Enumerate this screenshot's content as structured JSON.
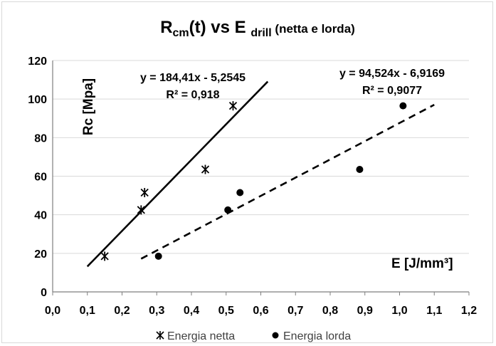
{
  "chart_data": {
    "type": "scatter",
    "title": {
      "main": "R",
      "main_sub": "cm",
      "mid": "(t) vs E ",
      "mid_sub": "drill",
      "tail": " (netta e lorda)"
    },
    "xlabel": "E [J/mm³]",
    "ylabel": "Rc [Mpa]",
    "xlim": [
      0,
      1.2
    ],
    "ylim": [
      0,
      120
    ],
    "xticks": [
      "0,0",
      "0,1",
      "0,2",
      "0,3",
      "0,4",
      "0,5",
      "0,6",
      "0,7",
      "0,8",
      "0,9",
      "1,0",
      "1,1",
      "1,2"
    ],
    "yticks": [
      "0",
      "20",
      "40",
      "60",
      "80",
      "100",
      "120"
    ],
    "grid": "horizontal",
    "legend_position": "bottom",
    "series": [
      {
        "name": "Energia netta",
        "marker": "asterisk",
        "color": "#000000",
        "points": [
          {
            "x": 0.15,
            "y": 18.5
          },
          {
            "x": 0.255,
            "y": 42.5
          },
          {
            "x": 0.265,
            "y": 51.5
          },
          {
            "x": 0.44,
            "y": 63.5
          },
          {
            "x": 0.52,
            "y": 96.5
          }
        ],
        "trendline": {
          "style": "solid",
          "slope": 184.41,
          "intercept": -5.2545,
          "x_range": [
            0.1,
            0.62
          ],
          "equation": "y = 184,41x - 5,2545",
          "r2": "R² = 0,918"
        }
      },
      {
        "name": "Energia lorda",
        "marker": "circle",
        "color": "#000000",
        "points": [
          {
            "x": 0.305,
            "y": 18.5
          },
          {
            "x": 0.505,
            "y": 42.5
          },
          {
            "x": 0.54,
            "y": 51.5
          },
          {
            "x": 0.885,
            "y": 63.5
          },
          {
            "x": 1.01,
            "y": 96.5
          }
        ],
        "trendline": {
          "style": "dashed",
          "slope": 94.524,
          "intercept": -6.9169,
          "x_range": [
            0.255,
            1.1
          ],
          "equation": "y = 94,524x - 6,9169",
          "r2": "R² = 0,9077"
        }
      }
    ]
  }
}
